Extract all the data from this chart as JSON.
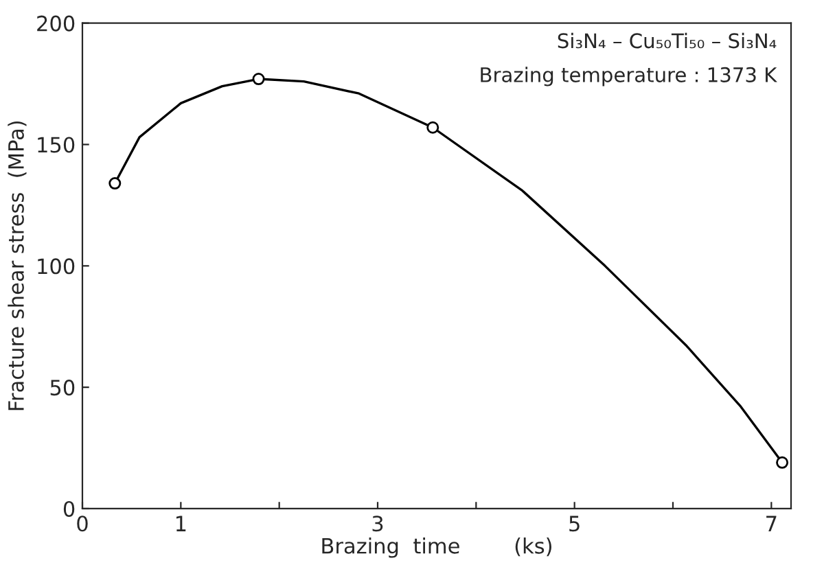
{
  "chart_data": {
    "type": "line",
    "xlabel": "Brazing  time        (ks)",
    "ylabel": "Fracture shear stress  (MPa)",
    "annotations": [
      "Si₃N₄ – Cu₅₀Ti₅₀ – Si₃N₄",
      "Brazing temperature : 1373 K"
    ],
    "series": [
      {
        "color": "#000000",
        "marker": "none",
        "x": [
          0.33,
          0.58,
          1.0,
          1.42,
          1.79,
          2.25,
          2.81,
          3.56,
          4.47,
          5.31,
          6.14,
          6.69,
          7.11
        ],
        "values": [
          134,
          153,
          167,
          174,
          177,
          176,
          171,
          157,
          131,
          100,
          67,
          42,
          19
        ]
      },
      {
        "type": "scatter",
        "color": "#000000",
        "marker": "circle",
        "x": [
          0.33,
          1.79,
          3.56,
          7.11
        ],
        "values": [
          134,
          177,
          157,
          19
        ]
      }
    ],
    "xlim": [
      0,
      7.2
    ],
    "ylim": [
      0,
      200
    ],
    "xticks": [
      0,
      1,
      {
        "value": 2,
        "label": null
      },
      3,
      {
        "value": 4,
        "label": null
      },
      5,
      {
        "value": 6,
        "label": null
      },
      7
    ],
    "yticks": [
      0,
      50,
      100,
      150,
      200
    ],
    "grid": false,
    "legend": false
  }
}
